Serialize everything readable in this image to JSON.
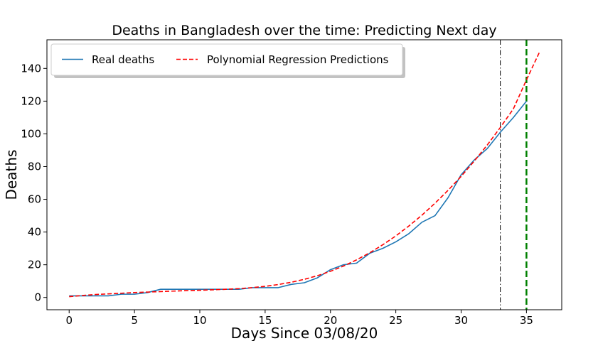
{
  "chart_data": {
    "type": "line",
    "title": "Deaths in Bangladesh over the time: Predicting Next day",
    "xlabel": "Days Since 03/08/20",
    "ylabel": "Deaths",
    "xlim": [
      -1.7,
      37.7
    ],
    "ylim": [
      -7.5,
      157.5
    ],
    "xticks": [
      0,
      5,
      10,
      15,
      20,
      25,
      30,
      35
    ],
    "yticks": [
      0,
      20,
      40,
      60,
      80,
      100,
      120,
      140
    ],
    "grid": false,
    "legend": {
      "placement": "top-left",
      "columns": 2
    },
    "series": [
      {
        "name": "Real deaths",
        "color": "#1f77b4",
        "style": "solid",
        "x": [
          0,
          1,
          2,
          3,
          4,
          5,
          6,
          7,
          8,
          9,
          10,
          11,
          12,
          13,
          14,
          15,
          16,
          17,
          18,
          19,
          20,
          21,
          22,
          23,
          24,
          25,
          26,
          27,
          28,
          29,
          30,
          31,
          32,
          33,
          34,
          35
        ],
        "y": [
          1,
          1,
          1,
          1,
          2,
          2,
          3,
          5,
          5,
          5,
          5,
          5,
          5,
          5,
          6,
          6,
          6,
          8,
          9,
          12,
          17,
          20,
          21,
          27,
          30,
          34,
          39,
          46,
          50,
          61,
          75,
          84,
          91,
          101,
          110,
          120
        ]
      },
      {
        "name": "Polynomial Regression Predictions",
        "color": "#ff0000",
        "style": "dashed",
        "x": [
          0,
          1,
          2,
          3,
          4,
          5,
          6,
          7,
          8,
          9,
          10,
          11,
          12,
          13,
          14,
          15,
          16,
          17,
          18,
          19,
          20,
          21,
          22,
          23,
          24,
          25,
          26,
          27,
          28,
          29,
          30,
          31,
          32,
          33,
          34,
          35,
          36
        ],
        "y": [
          0.5,
          1.2,
          1.8,
          2.2,
          2.6,
          3.0,
          3.3,
          3.6,
          3.9,
          4.2,
          4.4,
          4.7,
          5.0,
          5.4,
          6.0,
          6.8,
          7.9,
          9.3,
          11.1,
          13.3,
          16.0,
          19.2,
          23.0,
          27.3,
          32.2,
          37.6,
          43.7,
          50.3,
          57.6,
          65.5,
          74.0,
          83.3,
          93.2,
          103.9,
          115.3,
          133.0,
          150.0
        ]
      }
    ],
    "vlines": [
      {
        "x": 33,
        "color": "#000000",
        "style": "dashdot"
      },
      {
        "x": 35,
        "color": "#008000",
        "style": "dashed"
      }
    ]
  }
}
